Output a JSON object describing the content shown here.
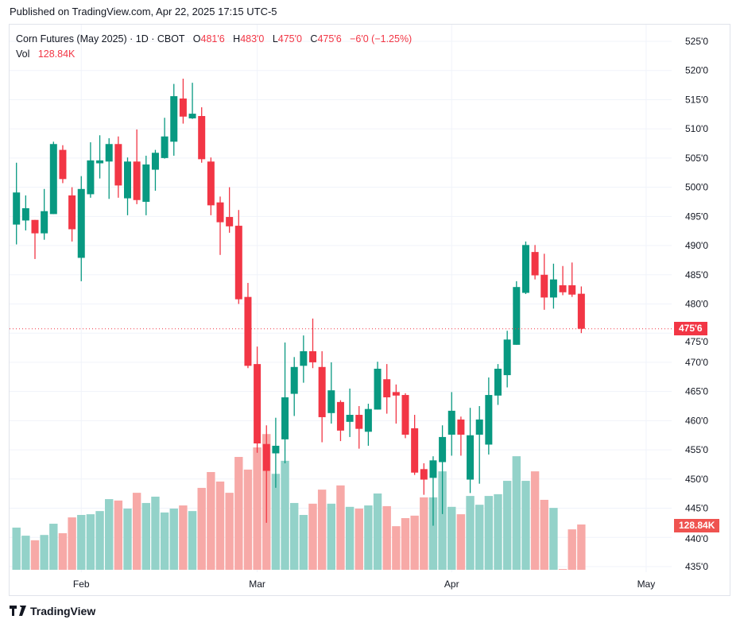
{
  "header": {
    "published": "Published on TradingView.com, Apr 22, 2025 17:15 UTC-5"
  },
  "legend": {
    "symbol": "Corn Futures (May 2025) · 1D · CBOT",
    "o_label": "O",
    "o_value": "481'6",
    "h_label": "H",
    "h_value": "483'0",
    "l_label": "L",
    "l_value": "475'0",
    "c_label": "C",
    "c_value": "475'6",
    "change": "−6'0 (−1.25%)",
    "vol_label": "Vol",
    "vol_value": "128.84K"
  },
  "badges": {
    "last_price": "475'6",
    "last_volume": "128.84K"
  },
  "footer": {
    "brand": "TradingView"
  },
  "colors": {
    "up": "#089981",
    "down": "#f23645",
    "vol_up": "#93d2c9",
    "vol_down": "#f7a9a7",
    "grid": "#f0f3fa"
  },
  "chart_data": {
    "type": "candlestick",
    "title": "Corn Futures (May 2025) · 1D · CBOT",
    "ylim": [
      434,
      527
    ],
    "y_ticks": [
      525,
      520,
      515,
      510,
      505,
      500,
      495,
      490,
      485,
      480,
      475,
      470,
      465,
      460,
      455,
      450,
      445,
      440,
      435
    ],
    "y_tick_labels": [
      "525'0",
      "520'0",
      "515'0",
      "510'0",
      "505'0",
      "500'0",
      "495'0",
      "490'0",
      "485'0",
      "480'0",
      "475'0",
      "470'0",
      "465'0",
      "460'0",
      "455'0",
      "450'0",
      "445'0",
      "440'0",
      "435'0"
    ],
    "x_ticks": [
      {
        "label": "Feb",
        "index": 7
      },
      {
        "label": "Mar",
        "index": 26
      },
      {
        "label": "Apr",
        "index": 47
      },
      {
        "label": "May",
        "index": 68
      }
    ],
    "last_price": 475.75,
    "ohlc": [
      [
        493.6,
        504.2,
        490.2,
        499.1
      ],
      [
        494.3,
        498.6,
        492.6,
        496.4
      ],
      [
        494.4,
        494.4,
        487.7,
        492.1
      ],
      [
        492.1,
        499.7,
        491.0,
        495.9
      ],
      [
        495.4,
        507.8,
        495.4,
        507.4
      ],
      [
        506.4,
        507.2,
        500.7,
        501.4
      ],
      [
        498.6,
        500.0,
        490.7,
        492.8
      ],
      [
        487.9,
        501.9,
        483.9,
        499.7
      ],
      [
        498.8,
        507.7,
        498.2,
        504.6
      ],
      [
        504.1,
        508.9,
        501.5,
        504.6
      ],
      [
        504.4,
        508.4,
        498.0,
        507.4
      ],
      [
        507.4,
        508.7,
        498.2,
        500.3
      ],
      [
        498.1,
        505.1,
        495.2,
        504.4
      ],
      [
        504.4,
        509.9,
        497.1,
        497.8
      ],
      [
        497.5,
        505.4,
        495.2,
        503.9
      ],
      [
        503.0,
        506.4,
        499.4,
        505.9
      ],
      [
        505.0,
        511.9,
        504.9,
        508.7
      ],
      [
        507.8,
        517.7,
        505.4,
        515.6
      ],
      [
        515.2,
        518.6,
        510.9,
        512.1
      ],
      [
        511.8,
        517.9,
        511.7,
        512.6
      ],
      [
        512.2,
        513.7,
        504.2,
        504.8
      ],
      [
        504.4,
        505.1,
        495.2,
        496.9
      ],
      [
        497.4,
        498.4,
        488.4,
        494.0
      ],
      [
        494.9,
        500.0,
        492.2,
        493.3
      ],
      [
        493.4,
        496.1,
        480.0,
        480.8
      ],
      [
        481.2,
        483.6,
        469.0,
        469.4
      ],
      [
        469.7,
        472.7,
        454.5,
        456.1
      ],
      [
        456.0,
        459.2,
        442.5,
        451.4
      ],
      [
        454.4,
        460.5,
        448.5,
        455.7
      ],
      [
        456.8,
        473.4,
        452.7,
        464.0
      ],
      [
        464.6,
        470.9,
        460.8,
        469.2
      ],
      [
        469.4,
        474.6,
        466.5,
        471.9
      ],
      [
        471.9,
        477.5,
        469.0,
        470.0
      ],
      [
        469.2,
        471.9,
        456.3,
        460.6
      ],
      [
        461.3,
        470.0,
        459.5,
        465.2
      ],
      [
        463.2,
        463.5,
        456.5,
        458.3
      ],
      [
        459.8,
        465.5,
        457.2,
        461.0
      ],
      [
        461.0,
        462.5,
        455.2,
        458.6
      ],
      [
        458.1,
        462.9,
        455.7,
        462.0
      ],
      [
        461.9,
        470.1,
        461.9,
        468.9
      ],
      [
        467.1,
        469.7,
        461.2,
        464.0
      ],
      [
        464.9,
        466.2,
        459.5,
        464.3
      ],
      [
        464.4,
        464.7,
        457.0,
        457.6
      ],
      [
        458.7,
        461.0,
        450.7,
        451.1
      ],
      [
        451.7,
        452.7,
        447.3,
        449.9
      ],
      [
        450.2,
        453.9,
        442.0,
        453.2
      ],
      [
        452.9,
        459.2,
        444.0,
        457.2
      ],
      [
        457.6,
        464.9,
        454.0,
        461.7
      ],
      [
        460.2,
        460.7,
        454.0,
        457.6
      ],
      [
        449.9,
        462.2,
        447.6,
        457.5
      ],
      [
        457.6,
        462.5,
        449.2,
        460.2
      ],
      [
        455.9,
        467.4,
        454.2,
        464.4
      ],
      [
        464.3,
        469.7,
        462.7,
        468.9
      ],
      [
        467.8,
        475.4,
        465.7,
        473.9
      ],
      [
        473.0,
        483.9,
        473.0,
        482.9
      ],
      [
        481.9,
        490.7,
        481.7,
        490.1
      ],
      [
        488.9,
        490.1,
        484.2,
        484.9
      ],
      [
        485.0,
        488.6,
        479.0,
        481.1
      ],
      [
        481.1,
        486.9,
        479.2,
        484.2
      ],
      [
        483.2,
        486.5,
        481.5,
        482.0
      ],
      [
        483.2,
        487.1,
        481.2,
        481.6
      ],
      [
        481.75,
        483.0,
        475.0,
        475.75
      ]
    ],
    "volume_k": [
      120,
      97,
      84,
      99,
      131,
      104,
      149,
      156,
      158,
      167,
      201,
      197,
      174,
      219,
      190,
      208,
      163,
      174,
      183,
      167,
      233,
      278,
      251,
      219,
      321,
      285,
      348,
      386,
      273,
      310,
      190,
      156,
      188,
      228,
      188,
      240,
      179,
      174,
      183,
      217,
      181,
      124,
      147,
      154,
      206,
      206,
      280,
      179,
      158,
      210,
      185,
      210,
      215,
      253,
      323,
      253,
      280,
      199,
      176,
      2,
      115,
      128.84
    ]
  }
}
